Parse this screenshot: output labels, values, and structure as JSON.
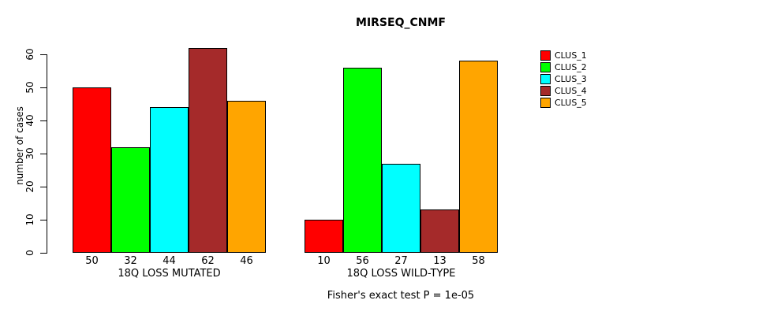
{
  "chart_data": {
    "type": "bar",
    "title": "MIRSEQ_CNMF",
    "ylabel": "number of cases",
    "xlabel": "",
    "ylim": [
      0,
      60
    ],
    "yticks": [
      0,
      10,
      20,
      30,
      40,
      50,
      60
    ],
    "grid": false,
    "legend_position": "right",
    "categories": [
      "18Q LOSS MUTATED",
      "18Q LOSS WILD-TYPE"
    ],
    "series": [
      {
        "name": "CLUS_1",
        "color": "#FF0000",
        "values": [
          50,
          10
        ]
      },
      {
        "name": "CLUS_2",
        "color": "#00FF00",
        "values": [
          32,
          56
        ]
      },
      {
        "name": "CLUS_3",
        "color": "#00FFFF",
        "values": [
          44,
          27
        ]
      },
      {
        "name": "CLUS_4",
        "color": "#A52A2A",
        "values": [
          62,
          13
        ]
      },
      {
        "name": "CLUS_5",
        "color": "#FFA500",
        "values": [
          46,
          58
        ]
      }
    ],
    "bar_value_labels": true,
    "annotation": "Fisher's exact test P = 1e-05"
  }
}
